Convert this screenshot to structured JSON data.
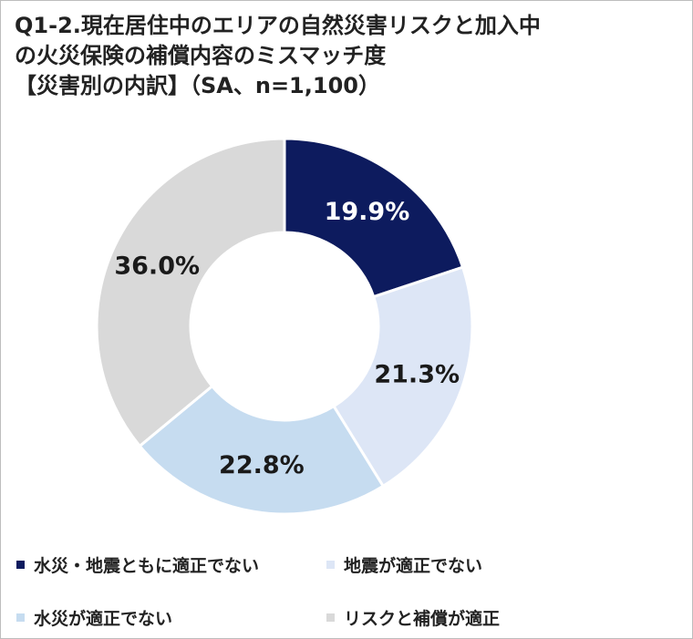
{
  "title": {
    "line1": "Q1-2.現在居住中のエリアの自然災害リスクと加入中",
    "line2": "の火災保険の補償内容のミスマッチ度",
    "line3": "【災害別の内訳】（SA、n=1,100）"
  },
  "chart_data": {
    "type": "pie",
    "donut": true,
    "start": "12 o'clock, clockwise",
    "categories": [
      "水災・地震ともに適正でない",
      "地震が適正でない",
      "水災が適正でない",
      "リスクと補償が適正"
    ],
    "values": [
      19.9,
      21.3,
      22.8,
      36.0
    ],
    "data_labels": [
      "19.9%",
      "21.3%",
      "22.8%",
      "36.0%"
    ],
    "colors": [
      "#0d1b5e",
      "#dde6f6",
      "#c6dcf0",
      "#d9d9d9"
    ],
    "label_colors": [
      "#ffffff",
      "#1a1a1a",
      "#1a1a1a",
      "#1a1a1a"
    ],
    "legend_position": "bottom"
  }
}
